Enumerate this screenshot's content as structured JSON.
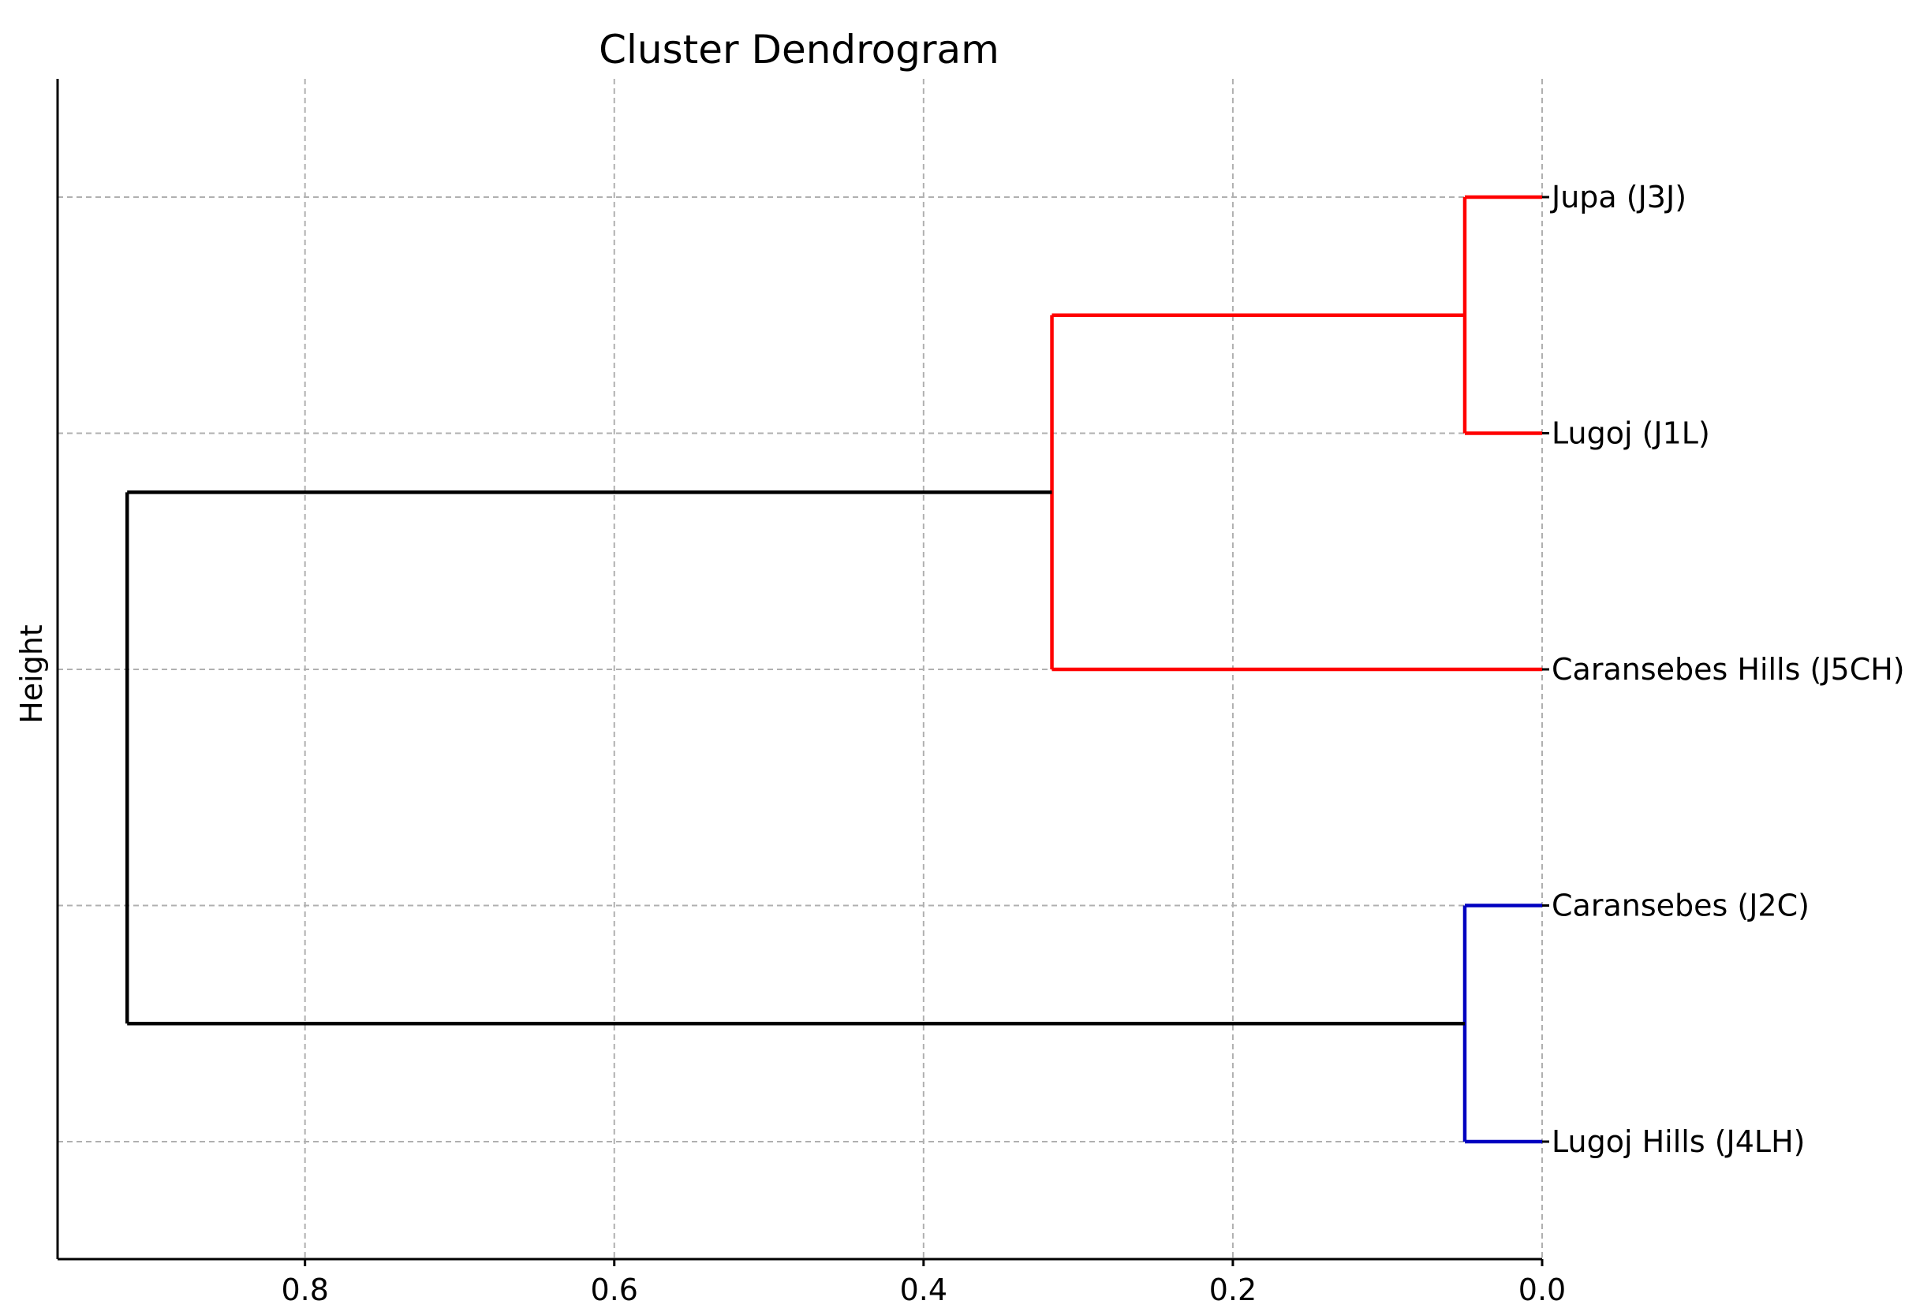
{
  "chart_data": {
    "type": "dendrogram",
    "orientation": "horizontal",
    "title": "Cluster Dendrogram",
    "ylabel": "Height",
    "xlabel": "",
    "x_axis": {
      "direction": "reversed",
      "range": [
        0.96,
        0.0
      ],
      "ticks": [
        "0.8",
        "0.6",
        "0.4",
        "0.2",
        "0.0"
      ],
      "tick_values": [
        0.8,
        0.6,
        0.4,
        0.2,
        0.0
      ]
    },
    "grid": true,
    "leaves": [
      {
        "label": "Jupa (J3J)"
      },
      {
        "label": "Lugoj (J1L)"
      },
      {
        "label": "Caransebes Hills (J5CH)"
      },
      {
        "label": "Caransebes (J2C)"
      },
      {
        "label": "Lugoj Hills (J4LH)"
      }
    ],
    "merges": [
      {
        "id": "m1",
        "children": [
          "leaf:0",
          "leaf:1"
        ],
        "height": 0.05,
        "color": "#ff0000"
      },
      {
        "id": "m2",
        "children": [
          "merge:m1",
          "leaf:2"
        ],
        "height": 0.317,
        "color": "#ff0000"
      },
      {
        "id": "m3",
        "children": [
          "leaf:3",
          "leaf:4"
        ],
        "height": 0.05,
        "color": "#0000c0"
      },
      {
        "id": "m4",
        "children": [
          "merge:m2",
          "merge:m3"
        ],
        "height": 0.915,
        "color": "#000000"
      }
    ],
    "colors": {
      "cluster_red": "#ff0000",
      "cluster_blue": "#0000c0",
      "link_above_threshold": "#000000",
      "grid": "#b0b0b0"
    }
  }
}
